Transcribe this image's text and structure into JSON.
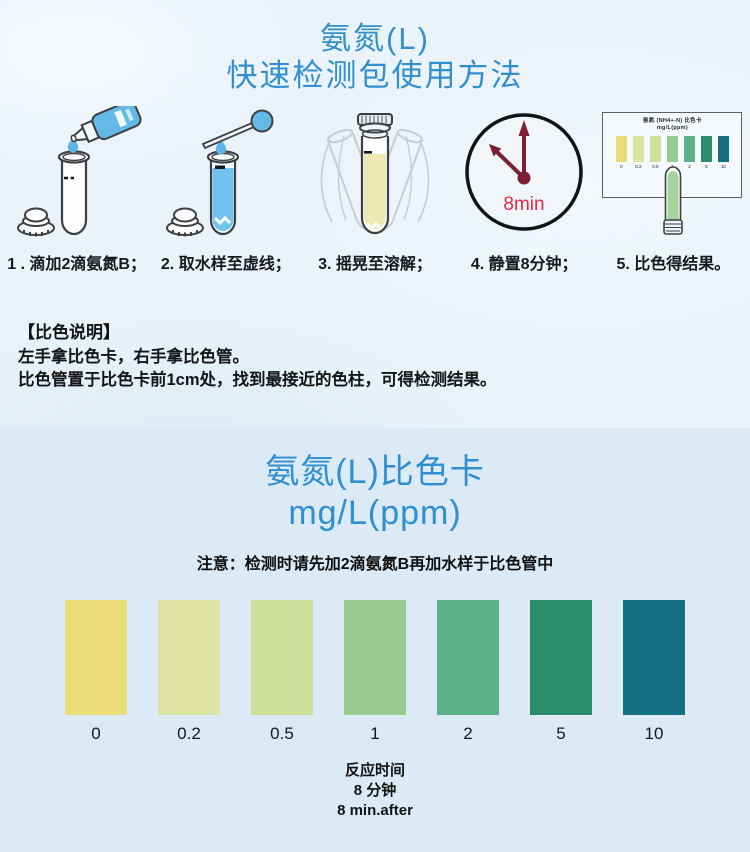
{
  "header": {
    "title_line1": "氨氮(L)",
    "title_line2": "快速检测包使用方法"
  },
  "steps": [
    {
      "label": "1 . 滴加2滴氨氮B；",
      "icon": "dropper-bottle-into-test-tube"
    },
    {
      "label": "2. 取水样至虚线；",
      "icon": "pipette-into-filled-test-tube"
    },
    {
      "label": "3. 摇晃至溶解；",
      "icon": "shaking-capped-test-tube"
    },
    {
      "label": "4. 静置8分钟；",
      "icon": "clock",
      "clock_text": "8min"
    },
    {
      "label": "5. 比色得结果。",
      "icon": "color-card-with-test-tube"
    }
  ],
  "mini_card": {
    "line1": "氨氮 (NH4+-N) 比色卡",
    "line2": "mg/L(ppm)"
  },
  "instructions": {
    "heading": "【比色说明】",
    "lines": [
      "左手拿比色卡，右手拿比色管。",
      "比色管置于比色卡前1cm处，找到最接近的色柱，可得检测结果。"
    ]
  },
  "card_section": {
    "title_line1": "氨氮(L)比色卡",
    "title_line2": "mg/L(ppm)",
    "note": "注意：检测时请先加2滴氨氮B再加水样于比色管中"
  },
  "footer": {
    "lines": [
      "反应时间",
      "8  分钟",
      "8  min.after"
    ]
  },
  "chart_data": {
    "type": "table",
    "title": "氨氮(L)比色卡",
    "subtitle": "mg/L(ppm)",
    "categories": [
      "0",
      "0.2",
      "0.5",
      "1",
      "2",
      "5",
      "10"
    ],
    "colors": [
      "#e9dc78",
      "#dde3a2",
      "#cfe09b",
      "#9bca90",
      "#5cb389",
      "#2a8c6a",
      "#146f82"
    ],
    "unit": "mg/L (ppm)",
    "reaction_time": "8 min"
  },
  "palette": {
    "background_top": "#eaf3f9",
    "background_bottom": "#dbeaf4",
    "title_blue": "#338fcd",
    "liquid_blue": "#6fc3ec",
    "bottle_blue": "#64b9e6",
    "liquid_yellow": "#ece9b2",
    "liquid_green": "#a6d29b",
    "clock_hand_maroon": "#7c2134",
    "clock_text_red": "#e5294d",
    "outline_gray": "#3d3f42",
    "text_black": "#17181a"
  }
}
